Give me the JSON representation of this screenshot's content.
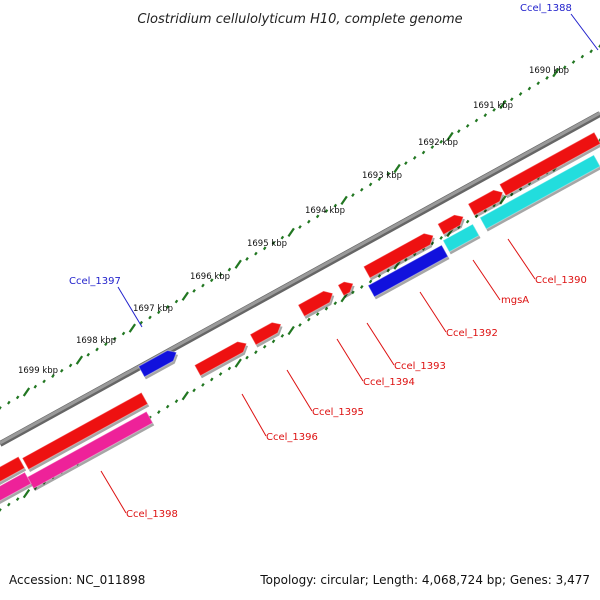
{
  "title": "Clostridium cellulolyticum H10, complete genome",
  "colors": {
    "forward_cds": "#ee1111",
    "reverse_cds": "#ee1111",
    "blue_gene": "#1111dd",
    "cyan_gene": "#22dddd",
    "pink_gene": "#ee2299",
    "backbone": "#808080",
    "tick": "#227722",
    "label_blue": "#2222cc",
    "label_red": "#dd1111"
  },
  "ticks": [
    {
      "label": "1690 kbp"
    },
    {
      "label": "1691 kbp"
    },
    {
      "label": "1692 kbp"
    },
    {
      "label": "1693 kbp"
    },
    {
      "label": "1694 kbp"
    },
    {
      "label": "1695 kbp"
    },
    {
      "label": "1696 kbp"
    },
    {
      "label": "1697 kbp"
    },
    {
      "label": "1698 kbp"
    },
    {
      "label": "1699 kbp"
    }
  ],
  "genes": [
    {
      "name": "Ccel_1388",
      "color": "blue"
    },
    {
      "name": "Ccel_1390",
      "color": "red"
    },
    {
      "name": "mgsA",
      "color": "red"
    },
    {
      "name": "Ccel_1392",
      "color": "red"
    },
    {
      "name": "Ccel_1393",
      "color": "red"
    },
    {
      "name": "Ccel_1394",
      "color": "red"
    },
    {
      "name": "Ccel_1395",
      "color": "red"
    },
    {
      "name": "Ccel_1396",
      "color": "red"
    },
    {
      "name": "Ccel_1397",
      "color": "blue"
    },
    {
      "name": "Ccel_1398",
      "color": "red"
    }
  ],
  "footer": {
    "accession": "Accession: NC_011898",
    "summary": "Topology: circular; Length: 4,068,724 bp; Genes: 3,477"
  }
}
